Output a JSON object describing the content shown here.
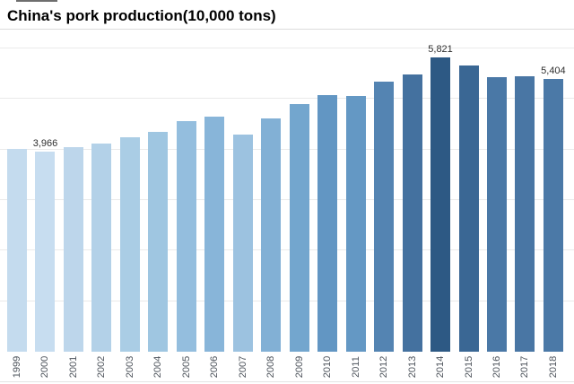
{
  "title": "China's pork production(10,000 tons)",
  "chart_data": {
    "type": "bar",
    "title": "China's pork production(10,000 tons)",
    "xlabel": "",
    "ylabel": "",
    "categories": [
      "1999",
      "2000",
      "2001",
      "2002",
      "2003",
      "2004",
      "2005",
      "2006",
      "2007",
      "2008",
      "2009",
      "2010",
      "2011",
      "2012",
      "2013",
      "2014",
      "2015",
      "2016",
      "2017",
      "2018"
    ],
    "values": [
      4006,
      3966,
      4052,
      4123,
      4239,
      4341,
      4555,
      4650,
      4288,
      4620,
      4891,
      5071,
      5053,
      5343,
      5493,
      5821,
      5667,
      5425,
      5452,
      5404
    ],
    "labels": [
      "",
      "3,966",
      "",
      "",
      "",
      "",
      "",
      "",
      "",
      "",
      "",
      "",
      "",
      "",
      "",
      "5,821",
      "",
      "",
      "",
      "5,404"
    ],
    "bar_colors": [
      "#c4dbee",
      "#c7ddf0",
      "#bdd6eb",
      "#b3d1e8",
      "#aacde5",
      "#9fc6e1",
      "#94bede",
      "#88b5d9",
      "#9cc2e0",
      "#82b0d5",
      "#73a6ce",
      "#6296c3",
      "#6498c4",
      "#5484b2",
      "#44719f",
      "#2d5984",
      "#3a6794",
      "#4a78a6",
      "#4976a4",
      "#4b79a7"
    ],
    "ylim": [
      0,
      6372
    ],
    "gridlines": [
      1000,
      2000,
      3000,
      4000,
      5000,
      6000
    ],
    "grid_color": "#eaeaea",
    "grid_on": true,
    "legend": "none",
    "background": "#ffffff",
    "accent_dark": "#2d5984",
    "accent_light": "#c7ddf0",
    "value_label_color": "#2e2e2e",
    "tick_label_color": "#4e545c"
  }
}
